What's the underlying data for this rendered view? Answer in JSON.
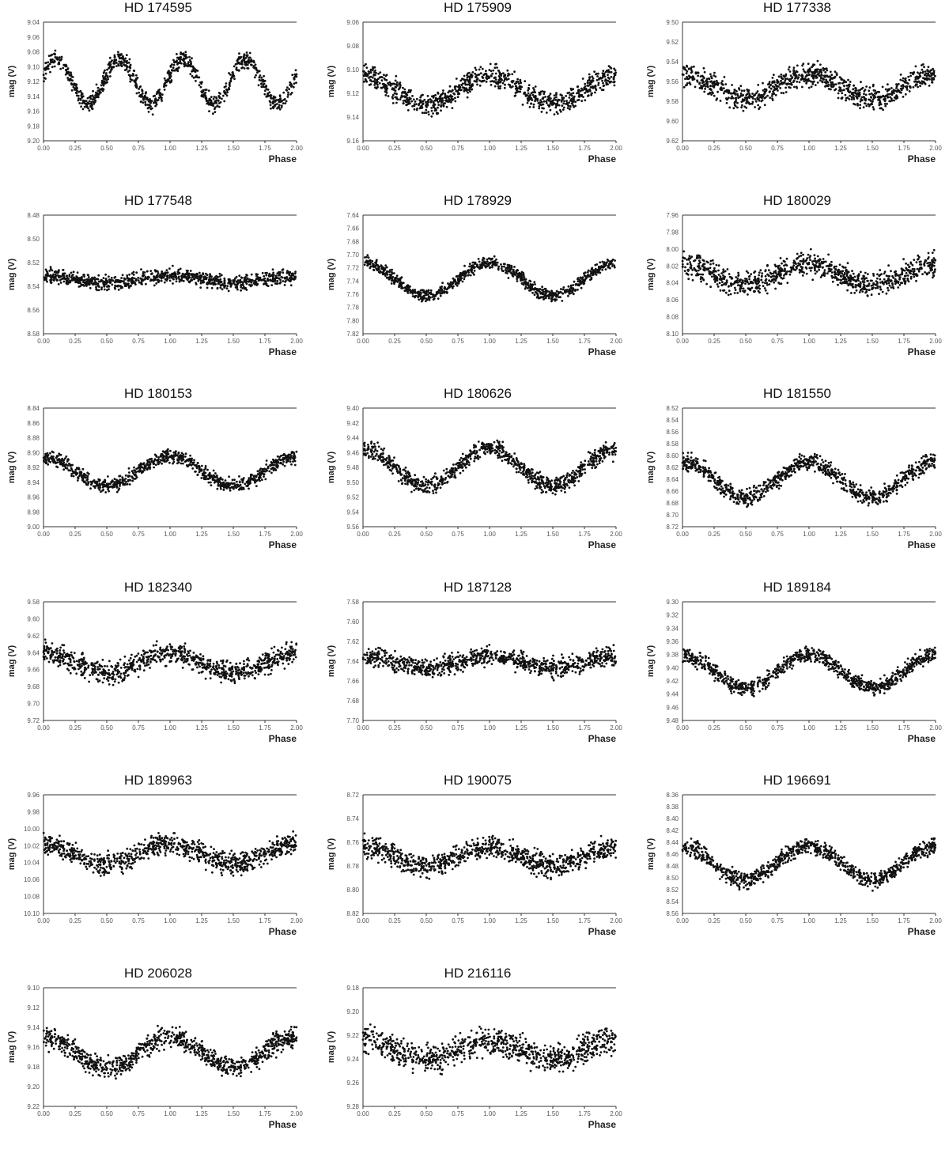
{
  "figure": {
    "ylabel": "mag (V)",
    "xlabel": "Phase",
    "xticks": [
      "0.00",
      "0.25",
      "0.50",
      "0.75",
      "1.00",
      "1.25",
      "1.50",
      "1.75",
      "2.00"
    ]
  },
  "chart_data": [
    {
      "type": "scatter",
      "title": "HD 174595",
      "ylim": [
        9.04,
        9.2
      ],
      "yticks": [
        "9.04",
        "9.06",
        "9.08",
        "9.10",
        "9.12",
        "9.14",
        "9.16",
        "9.18",
        "9.20"
      ],
      "xlim": [
        0,
        2
      ],
      "xlabel": "Phase",
      "ylabel": "mag (V)",
      "model": {
        "mean": 9.12,
        "amp": 0.03,
        "cycles": 4,
        "phase": 0.2,
        "scatter": 0.01
      },
      "legend": "none",
      "grid": false
    },
    {
      "type": "scatter",
      "title": "HD 175909",
      "ylim": [
        9.06,
        9.16
      ],
      "yticks": [
        "9.06",
        "9.08",
        "9.10",
        "9.12",
        "9.14",
        "9.16"
      ],
      "xlim": [
        0,
        2
      ],
      "xlabel": "Phase",
      "ylabel": "mag (V)",
      "model": {
        "mean": 9.117,
        "amp": 0.012,
        "cycles": 2,
        "phase": 0.0,
        "scatter": 0.008
      },
      "legend": "none",
      "grid": false
    },
    {
      "type": "scatter",
      "title": "HD 177338",
      "ylim": [
        9.5,
        9.62
      ],
      "yticks": [
        "9.50",
        "9.52",
        "9.54",
        "9.56",
        "9.58",
        "9.60",
        "9.62"
      ],
      "xlim": [
        0,
        2
      ],
      "xlabel": "Phase",
      "ylabel": "mag (V)",
      "model": {
        "mean": 9.565,
        "amp": 0.012,
        "cycles": 2,
        "phase": 0.0,
        "scatter": 0.01
      },
      "legend": "none",
      "grid": false
    },
    {
      "type": "scatter",
      "title": "HD 177548",
      "ylim": [
        8.48,
        8.58
      ],
      "yticks": [
        "8.48",
        "8.50",
        "8.52",
        "8.54",
        "8.56",
        "8.58"
      ],
      "xlim": [
        0,
        2
      ],
      "xlabel": "Phase",
      "ylabel": "mag (V)",
      "model": {
        "mean": 8.534,
        "amp": 0.003,
        "cycles": 2,
        "phase": 0.0,
        "scatter": 0.005
      },
      "legend": "none",
      "grid": false
    },
    {
      "type": "scatter",
      "title": "HD 178929",
      "ylim": [
        7.64,
        7.82
      ],
      "yticks": [
        "7.64",
        "7.66",
        "7.68",
        "7.70",
        "7.72",
        "7.74",
        "7.76",
        "7.78",
        "7.80",
        "7.82"
      ],
      "xlim": [
        1,
        2
      ],
      "xlabel": "Phase",
      "ylabel": "mag (V)",
      "model": {
        "mean": 7.737,
        "amp": 0.025,
        "cycles": 2,
        "phase": 0.0,
        "scatter": 0.008
      },
      "legend": "none",
      "grid": false
    },
    {
      "type": "scatter",
      "title": "HD 180029",
      "ylim": [
        7.96,
        8.1
      ],
      "yticks": [
        "7.96",
        "7.98",
        "8.00",
        "8.02",
        "8.04",
        "8.06",
        "8.08",
        "8.10"
      ],
      "xlim": [
        1,
        2
      ],
      "xlabel": "Phase",
      "ylabel": "mag (V)",
      "model": {
        "mean": 8.03,
        "amp": 0.012,
        "cycles": 2,
        "phase": 0.0,
        "scatter": 0.012
      },
      "legend": "none",
      "grid": false
    },
    {
      "type": "scatter",
      "title": "HD 180153",
      "ylim": [
        8.84,
        9.0
      ],
      "yticks": [
        "8.84",
        "8.86",
        "8.88",
        "8.90",
        "8.92",
        "8.94",
        "8.96",
        "8.98",
        "9.00"
      ],
      "xlim": [
        1,
        2
      ],
      "xlabel": "Phase",
      "ylabel": "mag (V)",
      "model": {
        "mean": 8.925,
        "amp": 0.02,
        "cycles": 2,
        "phase": 0.0,
        "scatter": 0.008
      },
      "legend": "none",
      "grid": false
    },
    {
      "type": "scatter",
      "title": "HD 180626",
      "ylim": [
        9.4,
        9.56
      ],
      "yticks": [
        "9.40",
        "9.42",
        "9.44",
        "9.46",
        "9.48",
        "9.50",
        "9.52",
        "9.54",
        "9.56"
      ],
      "xlim": [
        1,
        2
      ],
      "xlabel": "Phase",
      "ylabel": "mag (V)",
      "model": {
        "mean": 9.48,
        "amp": 0.025,
        "cycles": 2,
        "phase": 0.0,
        "scatter": 0.01
      },
      "legend": "none",
      "grid": false
    },
    {
      "type": "scatter",
      "title": "HD 181550",
      "ylim": [
        8.52,
        8.72
      ],
      "yticks": [
        "8.52",
        "8.54",
        "8.56",
        "8.58",
        "8.60",
        "8.62",
        "8.64",
        "8.66",
        "8.68",
        "8.70",
        "8.72"
      ],
      "xlim": [
        1,
        2
      ],
      "xlabel": "Phase",
      "ylabel": "mag (V)",
      "model": {
        "mean": 8.64,
        "amp": 0.03,
        "cycles": 2,
        "phase": 0.0,
        "scatter": 0.012
      },
      "legend": "none",
      "grid": false
    },
    {
      "type": "scatter",
      "title": "HD 182340",
      "ylim": [
        9.58,
        9.72
      ],
      "yticks": [
        "9.58",
        "9.60",
        "9.62",
        "9.64",
        "9.66",
        "9.68",
        "9.70",
        "9.72"
      ],
      "xlim": [
        0,
        2
      ],
      "xlabel": "Phase",
      "ylabel": "mag (V)",
      "model": {
        "mean": 9.652,
        "amp": 0.012,
        "cycles": 2,
        "phase": 0.0,
        "scatter": 0.011
      },
      "legend": "none",
      "grid": false
    },
    {
      "type": "scatter",
      "title": "HD 187128",
      "ylim": [
        7.58,
        7.7
      ],
      "yticks": [
        "7.58",
        "7.60",
        "7.62",
        "7.64",
        "7.66",
        "7.68",
        "7.70"
      ],
      "xlim": [
        0,
        2
      ],
      "xlabel": "Phase",
      "ylabel": "mag (V)",
      "model": {
        "mean": 7.641,
        "amp": 0.006,
        "cycles": 2,
        "phase": 0.0,
        "scatter": 0.008
      },
      "legend": "none",
      "grid": false
    },
    {
      "type": "scatter",
      "title": "HD 189184",
      "ylim": [
        9.3,
        9.48
      ],
      "yticks": [
        "9.30",
        "9.32",
        "9.34",
        "9.36",
        "9.38",
        "9.40",
        "9.42",
        "9.44",
        "9.46",
        "9.48"
      ],
      "xlim": [
        0,
        2
      ],
      "xlabel": "Phase",
      "ylabel": "mag (V)",
      "model": {
        "mean": 9.405,
        "amp": 0.025,
        "cycles": 2,
        "phase": 0.0,
        "scatter": 0.01
      },
      "legend": "none",
      "grid": false
    },
    {
      "type": "scatter",
      "title": "HD 189963",
      "ylim": [
        9.96,
        10.1
      ],
      "yticks": [
        "9.96",
        "9.98",
        "10.00",
        "10.02",
        "10.04",
        "10.06",
        "10.08",
        "10.10"
      ],
      "xlim": [
        0,
        2
      ],
      "xlabel": "Phase",
      "ylabel": "mag (V)",
      "model": {
        "mean": 10.03,
        "amp": 0.012,
        "cycles": 2,
        "phase": 0.0,
        "scatter": 0.011
      },
      "legend": "none",
      "grid": false
    },
    {
      "type": "scatter",
      "title": "HD 190075",
      "ylim": [
        8.72,
        8.82
      ],
      "yticks": [
        "8.72",
        "8.74",
        "8.76",
        "8.78",
        "8.80",
        "8.82"
      ],
      "xlim": [
        0,
        2
      ],
      "xlabel": "Phase",
      "ylabel": "mag (V)",
      "model": {
        "mean": 8.772,
        "amp": 0.008,
        "cycles": 2,
        "phase": 0.0,
        "scatter": 0.008
      },
      "legend": "none",
      "grid": false
    },
    {
      "type": "scatter",
      "title": "HD 196691",
      "ylim": [
        8.36,
        8.56
      ],
      "yticks": [
        "8.36",
        "8.38",
        "8.40",
        "8.42",
        "8.44",
        "8.46",
        "8.48",
        "8.50",
        "8.52",
        "8.54",
        "8.56"
      ],
      "xlim": [
        0,
        2
      ],
      "xlabel": "Phase",
      "ylabel": "mag (V)",
      "model": {
        "mean": 8.475,
        "amp": 0.028,
        "cycles": 2,
        "phase": 0.0,
        "scatter": 0.012
      },
      "legend": "none",
      "grid": false
    },
    {
      "type": "scatter",
      "title": "HD 206028",
      "ylim": [
        9.1,
        9.22
      ],
      "yticks": [
        "9.10",
        "9.12",
        "9.14",
        "9.16",
        "9.18",
        "9.20",
        "9.22"
      ],
      "xlim": [
        0,
        2
      ],
      "xlabel": "Phase",
      "ylabel": "mag (V)",
      "model": {
        "mean": 9.165,
        "amp": 0.015,
        "cycles": 2,
        "phase": 0.0,
        "scatter": 0.009
      },
      "legend": "none",
      "grid": false
    },
    {
      "type": "scatter",
      "title": "HD 216116",
      "ylim": [
        9.18,
        9.28
      ],
      "yticks": [
        "9.18",
        "9.20",
        "9.22",
        "9.24",
        "9.26",
        "9.28"
      ],
      "xlim": [
        0,
        2
      ],
      "xlabel": "Phase",
      "ylabel": "mag (V)",
      "model": {
        "mean": 9.232,
        "amp": 0.008,
        "cycles": 2,
        "phase": 0.0,
        "scatter": 0.01
      },
      "legend": "none",
      "grid": false
    }
  ]
}
